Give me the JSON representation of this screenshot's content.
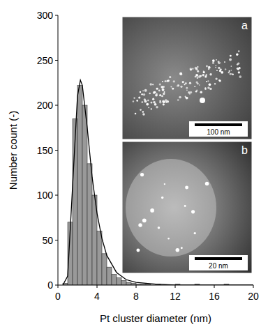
{
  "chart_data": {
    "type": "histogram",
    "x_label": "Pt cluster diameter (nm)",
    "y_label": "Number count (-)",
    "bins": [
      0,
      0.5,
      1,
      1.5,
      2,
      2.5,
      3,
      3.5,
      4,
      4.5,
      5,
      5.5,
      6,
      6.5,
      7,
      7.5,
      8,
      8.5,
      9,
      9.5,
      10,
      10.5,
      11,
      11.5,
      12,
      12.5,
      13,
      13.5,
      14,
      14.5,
      15,
      15.5,
      16,
      16.5,
      17,
      17.5,
      18,
      18.5,
      19,
      19.5,
      20
    ],
    "values": [
      0,
      2,
      70,
      185,
      222,
      200,
      135,
      100,
      60,
      35,
      20,
      12,
      8,
      5,
      3,
      2,
      1,
      1,
      1,
      0,
      1,
      0,
      0,
      0,
      1,
      0,
      0,
      0,
      1,
      0,
      0,
      0,
      0,
      0,
      1,
      0,
      0,
      0,
      0,
      0
    ],
    "color": "#999999",
    "curve": {
      "type": "line",
      "color": "#000000",
      "x": [
        0.5,
        1,
        1.5,
        2,
        2.3,
        2.5,
        3,
        3.5,
        4,
        4.5,
        5,
        6,
        7,
        8,
        10,
        12,
        20
      ],
      "values": [
        0,
        10,
        110,
        210,
        228,
        222,
        175,
        120,
        80,
        52,
        33,
        14,
        6,
        3,
        1,
        0,
        0
      ]
    },
    "xlim": [
      0,
      20
    ],
    "ylim": [
      0,
      300
    ],
    "xticks": [
      0,
      4,
      8,
      12,
      16,
      20
    ],
    "yticks": [
      0,
      50,
      100,
      150,
      200,
      250,
      300
    ],
    "insets": [
      {
        "label": "a",
        "scale_bar": "100 nm"
      },
      {
        "label": "b",
        "scale_bar": "20 nm"
      }
    ]
  }
}
